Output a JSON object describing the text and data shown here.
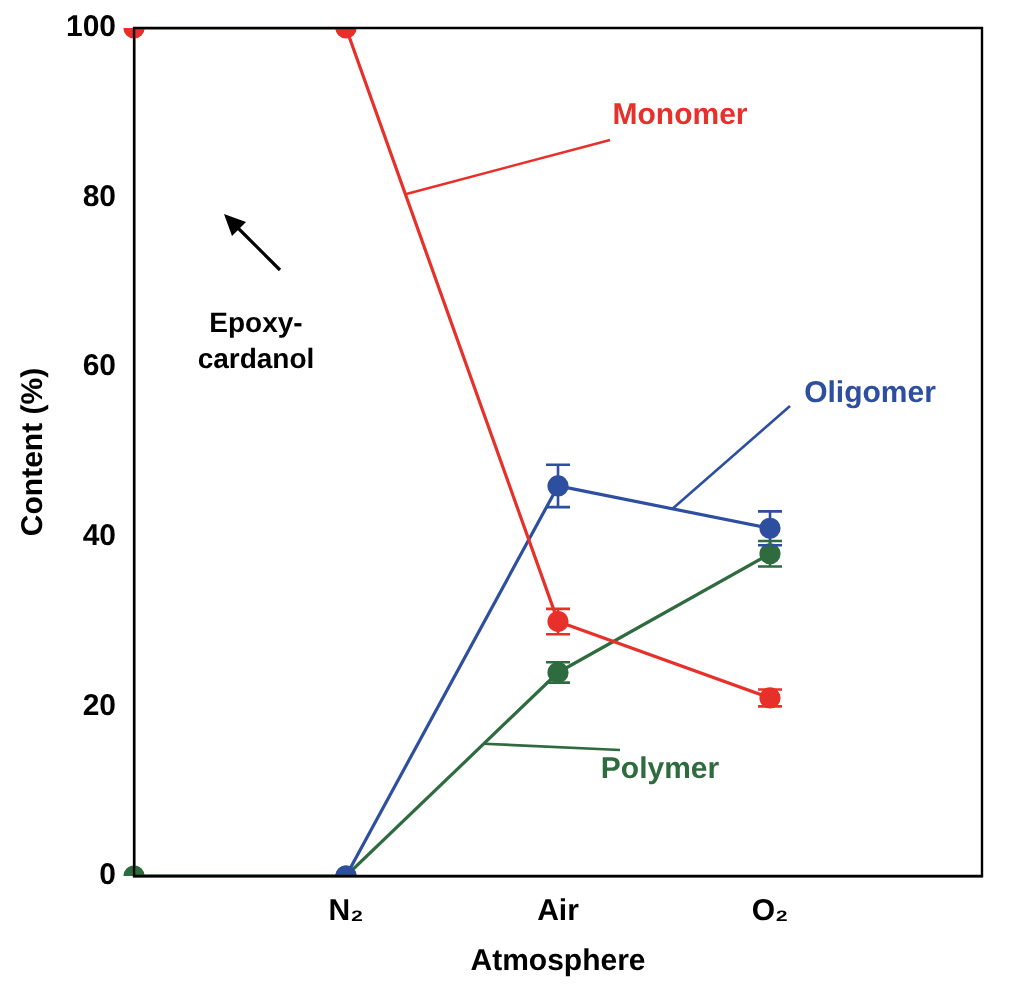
{
  "chart_data": {
    "type": "line",
    "xlabel": "Atmosphere",
    "ylabel": "Content (%)",
    "categories": [
      null,
      "N₂",
      "Air",
      "O₂",
      null
    ],
    "ylim": [
      0,
      100
    ],
    "yticks": [
      0,
      20,
      40,
      60,
      80,
      100
    ],
    "grid": false,
    "legend": false,
    "marker": "circle",
    "line_style": "solid",
    "series": [
      {
        "name": "Monomer",
        "color": "#e8302a",
        "values": [
          100,
          100,
          30,
          21,
          null
        ],
        "errors": [
          null,
          null,
          1.5,
          1,
          null
        ]
      },
      {
        "name": "Oligomer",
        "color": "#2e4fa0",
        "values": [
          null,
          0,
          46,
          41,
          null
        ],
        "errors": [
          null,
          null,
          2.5,
          2,
          null
        ]
      },
      {
        "name": "Polymer",
        "color": "#2e6b3e",
        "values": [
          0,
          0,
          24,
          38,
          null
        ],
        "errors": [
          null,
          null,
          1.2,
          1.5,
          null
        ]
      }
    ],
    "annotations": [
      "Epoxy-\ncardanol"
    ]
  }
}
